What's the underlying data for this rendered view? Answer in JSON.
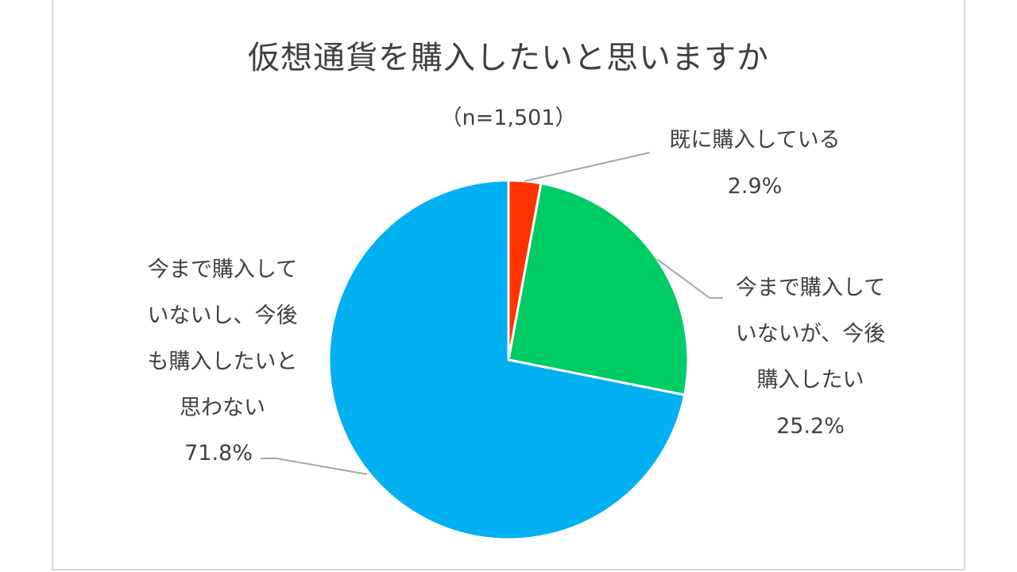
{
  "chart_data": {
    "type": "pie",
    "title": "仮想通貨を購入したいと思いますか",
    "subtitle": "（n=1,501）",
    "slices": [
      {
        "label_lines": [
          "既に購入している"
        ],
        "value": 2.9,
        "value_label": "2.9%",
        "color": "#ff3300"
      },
      {
        "label_lines": [
          "今まで購入して",
          "いないが、今後",
          "購入したい"
        ],
        "value": 25.2,
        "value_label": "25.2%",
        "color": "#00cc66"
      },
      {
        "label_lines": [
          "今まで購入して",
          "いないし、今後",
          "も購入したいと",
          "思わない"
        ],
        "value": 71.8,
        "value_label": "71.8%",
        "color": "#00b0f0"
      }
    ]
  }
}
